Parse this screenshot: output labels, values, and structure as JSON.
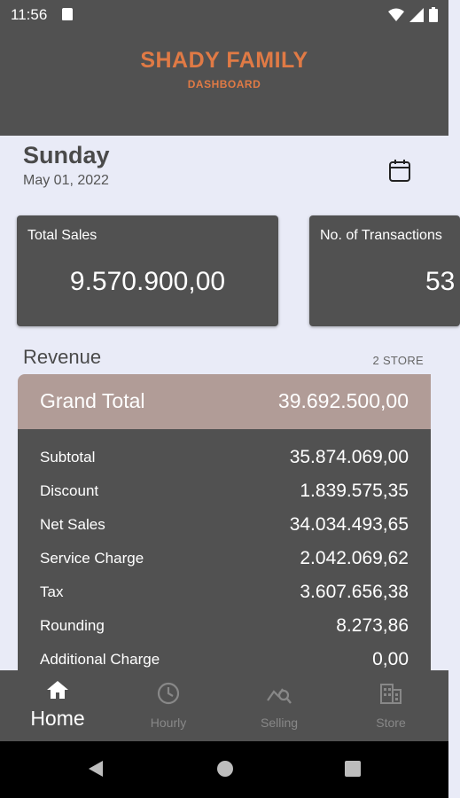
{
  "status_bar": {
    "time": "11:56"
  },
  "header": {
    "brand": "SHADY FAMILY",
    "subtitle": "DASHBOARD",
    "brand_color": "#e07a45"
  },
  "date_section": {
    "day": "Sunday",
    "date": "May 01, 2022",
    "calendar_icon": "calendar-icon"
  },
  "cards": [
    {
      "title": "Total Sales",
      "value": "9.570.900,00"
    },
    {
      "title": "No. of Transactions",
      "value": "53"
    }
  ],
  "revenue": {
    "title": "Revenue",
    "store_count": "2 STORE",
    "grand_total_label": "Grand Total",
    "grand_total_value": "39.692.500,00",
    "rows": [
      {
        "label": "Subtotal",
        "value": "35.874.069,00"
      },
      {
        "label": "Discount",
        "value": "1.839.575,35"
      },
      {
        "label": "Net Sales",
        "value": "34.034.493,65"
      },
      {
        "label": "Service Charge",
        "value": "2.042.069,62"
      },
      {
        "label": "Tax",
        "value": "3.607.656,38"
      },
      {
        "label": "Rounding",
        "value": "8.273,86"
      },
      {
        "label": "Additional Charge",
        "value": "0,00"
      }
    ]
  },
  "bottom_nav": [
    {
      "label": "Home",
      "icon": "home-icon",
      "active": true
    },
    {
      "label": "Hourly",
      "icon": "clock-icon",
      "active": false
    },
    {
      "label": "Selling",
      "icon": "trend-search-icon",
      "active": false
    },
    {
      "label": "Store",
      "icon": "building-icon",
      "active": false
    }
  ],
  "colors": {
    "panel": "#515151",
    "accent": "#e07a45",
    "grand_total_bg": "#b19c97",
    "background": "#e9ebf7"
  }
}
